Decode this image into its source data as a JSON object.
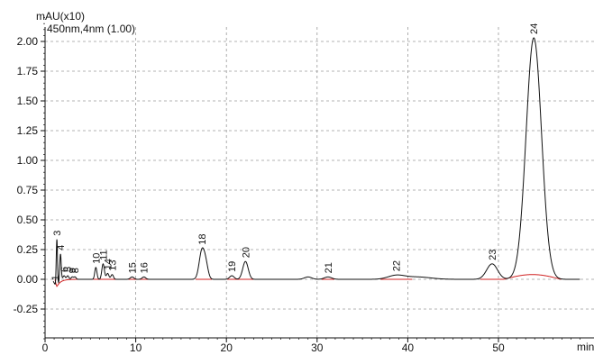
{
  "chart_data": {
    "type": "line",
    "title": "",
    "y_unit": "mAU(x10)",
    "detector": "450nm,4nm (1.00)",
    "xlabel": "min",
    "ylabel": "",
    "xlim": [
      0,
      59
    ],
    "ylim": [
      -0.5,
      2.2
    ],
    "x_ticks": [
      0,
      10,
      20,
      30,
      40,
      50
    ],
    "x_tick_labels": [
      "0",
      "10",
      "20",
      "30",
      "40",
      "50"
    ],
    "y_ticks": [
      -0.25,
      0.0,
      0.25,
      0.5,
      0.75,
      1.0,
      1.25,
      1.5,
      1.75,
      2.0
    ],
    "y_tick_labels": [
      "-0.25",
      "0.00",
      "0.25",
      "0.50",
      "0.75",
      "1.00",
      "1.25",
      "1.50",
      "1.75",
      "2.00"
    ],
    "grid": true,
    "legend": "none",
    "colors": {
      "signal": "#111111",
      "baseline": "#d02020"
    },
    "peaks": [
      {
        "label": "1",
        "rt": 1.1,
        "height": 0.02,
        "width": 0.1
      },
      {
        "label": "3",
        "rt": 1.3,
        "height": 0.42,
        "width": 0.07
      },
      {
        "label": "4",
        "rt": 1.7,
        "height": 0.22,
        "width": 0.08
      },
      {
        "label": "6",
        "rt": 2.1,
        "height": 0.03,
        "width": 0.12
      },
      {
        "label": "5",
        "rt": 2.5,
        "height": 0.03,
        "width": 0.12
      },
      {
        "label": "9",
        "rt": 3.0,
        "height": 0.02,
        "width": 0.12
      },
      {
        "label": "8",
        "rt": 3.3,
        "height": 0.02,
        "width": 0.12
      },
      {
        "label": "10",
        "rt": 5.6,
        "height": 0.1,
        "width": 0.12
      },
      {
        "label": "11",
        "rt": 6.4,
        "height": 0.13,
        "width": 0.14
      },
      {
        "label": "14",
        "rt": 6.9,
        "height": 0.05,
        "width": 0.14
      },
      {
        "label": "13",
        "rt": 7.4,
        "height": 0.04,
        "width": 0.14
      },
      {
        "label": "15",
        "rt": 9.6,
        "height": 0.02,
        "width": 0.2
      },
      {
        "label": "16",
        "rt": 10.9,
        "height": 0.02,
        "width": 0.2
      },
      {
        "label": "18",
        "rt": 17.3,
        "height": 0.24,
        "width": 0.3
      },
      {
        "label": "19",
        "rt": 20.6,
        "height": 0.03,
        "width": 0.25
      },
      {
        "label": "20",
        "rt": 22.1,
        "height": 0.15,
        "width": 0.3
      },
      {
        "label": "21",
        "rt": 31.2,
        "height": 0.02,
        "width": 0.4
      },
      {
        "label": "22",
        "rt": 38.7,
        "height": 0.03,
        "width": 0.9
      },
      {
        "label": "23",
        "rt": 49.3,
        "height": 0.13,
        "width": 0.6
      },
      {
        "label": "24",
        "rt": 53.9,
        "height": 2.03,
        "width": 0.85
      }
    ],
    "minor_features": [
      {
        "rt": 1.25,
        "height": -0.09,
        "width": 0.2
      },
      {
        "rt": 17.75,
        "height": 0.1,
        "width": 0.25
      },
      {
        "rt": 29.0,
        "height": 0.02,
        "width": 0.4
      },
      {
        "rt": 41.0,
        "height": 0.02,
        "width": 1.5
      }
    ]
  }
}
